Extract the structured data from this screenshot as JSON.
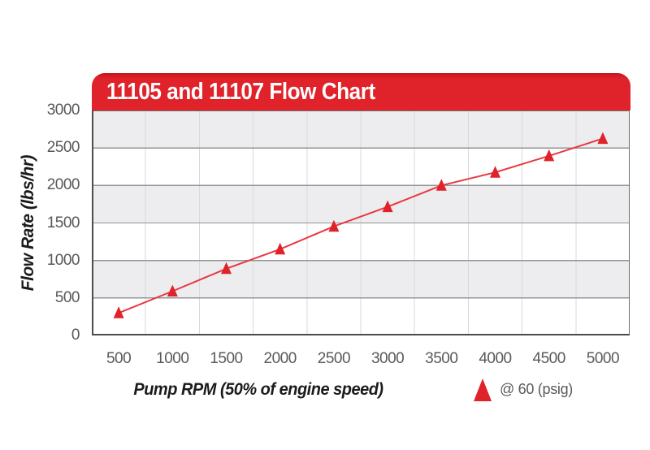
{
  "banner": {
    "title": "11105 and 11107 Flow Chart"
  },
  "axes": {
    "x_title": "Pump RPM (50% of engine speed)",
    "y_title": "Flow Rate (lbs/hr)"
  },
  "legend": {
    "marker": "triangle-up-icon",
    "label": "@ 60 (psig)"
  },
  "chart_data": {
    "type": "line",
    "title": "11105 and 11107 Flow Chart",
    "xlabel": "Pump RPM (50% of engine speed)",
    "ylabel": "Flow Rate (lbs/hr)",
    "x": [
      500,
      1000,
      1500,
      2000,
      2500,
      3000,
      3500,
      4000,
      4500,
      5000
    ],
    "x_tick_labels": [
      "500",
      "1000",
      "1500",
      "2000",
      "2500",
      "3000",
      "3500",
      "4000",
      "4500",
      "5000"
    ],
    "series": [
      {
        "name": "@ 60 (psig)",
        "marker": "triangle-up",
        "values": [
          300,
          590,
          890,
          1150,
          1455,
          1715,
          2000,
          2175,
          2395,
          2625
        ]
      }
    ],
    "ylim": [
      0,
      3000
    ],
    "y_ticks": [
      0,
      500,
      1000,
      1500,
      2000,
      2500,
      3000
    ],
    "grid": "horizontal major lines every 500; vertical lines at category boundaries; alternating gray/white 500-unit bands",
    "legend_position": "bottom-right below axis",
    "style": {
      "accent": "#e0222a",
      "line_color": "#e8383f",
      "band_gray": "#ededef",
      "vgrid": "#d7d9db",
      "hgrid": "#939598",
      "plot_border": "#6d6e71",
      "tick_text": "#58595b",
      "title_text": "#1b1b1d",
      "banner_text": "#ffffff"
    }
  }
}
